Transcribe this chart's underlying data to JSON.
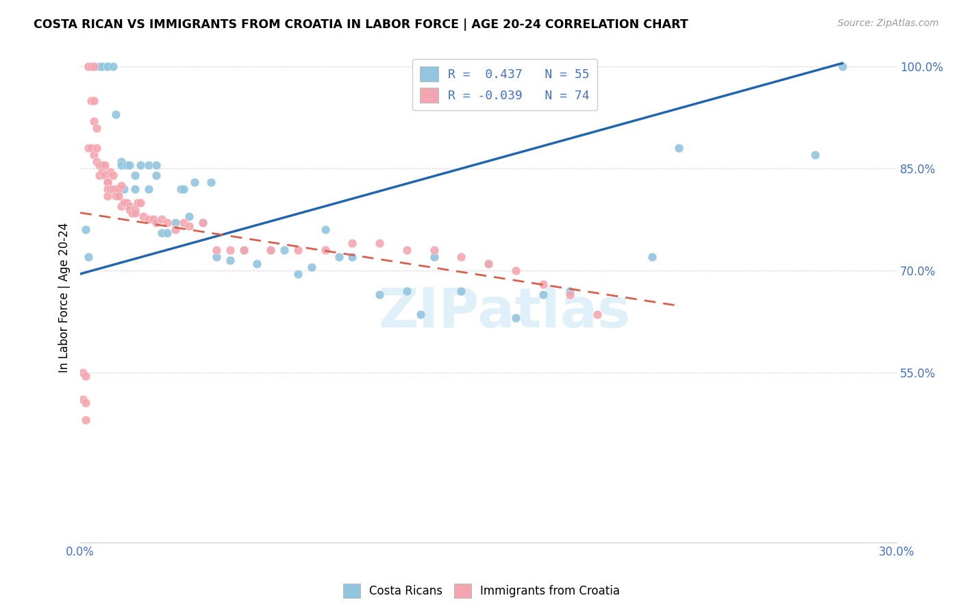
{
  "title": "COSTA RICAN VS IMMIGRANTS FROM CROATIA IN LABOR FORCE | AGE 20-24 CORRELATION CHART",
  "source": "Source: ZipAtlas.com",
  "ylabel": "In Labor Force | Age 20-24",
  "xlim": [
    0.0,
    0.3
  ],
  "ylim": [
    0.3,
    1.02
  ],
  "yticks": [
    1.0,
    0.85,
    0.7,
    0.55
  ],
  "ytick_labels": [
    "100.0%",
    "85.0%",
    "70.0%",
    "55.0%"
  ],
  "xticks": [
    0.0,
    0.05,
    0.1,
    0.15,
    0.2,
    0.25,
    0.3
  ],
  "xtick_labels": [
    "0.0%",
    "",
    "",
    "",
    "",
    "",
    "30.0%"
  ],
  "legend_blue_label": "R =  0.437   N = 55",
  "legend_pink_label": "R = -0.039   N = 74",
  "blue_color": "#92c5de",
  "pink_color": "#f4a6b0",
  "blue_line_color": "#2166ac",
  "pink_line_color": "#d6604d",
  "watermark": "ZIPatlas",
  "blue_line_x0": 0.0,
  "blue_line_y0": 0.695,
  "blue_line_x1": 0.28,
  "blue_line_y1": 1.005,
  "pink_line_x0": 0.0,
  "pink_line_y0": 0.785,
  "pink_line_x1": 0.22,
  "pink_line_y1": 0.648,
  "blue_scatter_x": [
    0.002,
    0.003,
    0.005,
    0.005,
    0.007,
    0.008,
    0.01,
    0.01,
    0.012,
    0.013,
    0.015,
    0.015,
    0.016,
    0.017,
    0.018,
    0.02,
    0.02,
    0.022,
    0.025,
    0.025,
    0.028,
    0.028,
    0.03,
    0.032,
    0.035,
    0.037,
    0.038,
    0.04,
    0.042,
    0.045,
    0.048,
    0.05,
    0.055,
    0.06,
    0.065,
    0.07,
    0.075,
    0.08,
    0.085,
    0.09,
    0.095,
    0.1,
    0.11,
    0.12,
    0.125,
    0.13,
    0.14,
    0.15,
    0.16,
    0.17,
    0.18,
    0.21,
    0.22,
    0.27,
    0.28
  ],
  "blue_scatter_y": [
    0.76,
    0.72,
    1.0,
    1.0,
    1.0,
    1.0,
    1.0,
    1.0,
    1.0,
    0.93,
    0.86,
    0.855,
    0.82,
    0.855,
    0.855,
    0.82,
    0.84,
    0.855,
    0.82,
    0.855,
    0.84,
    0.855,
    0.755,
    0.755,
    0.77,
    0.82,
    0.82,
    0.78,
    0.83,
    0.77,
    0.83,
    0.72,
    0.715,
    0.73,
    0.71,
    0.73,
    0.73,
    0.695,
    0.705,
    0.76,
    0.72,
    0.72,
    0.665,
    0.67,
    0.635,
    0.72,
    0.67,
    0.71,
    0.63,
    0.665,
    0.67,
    0.72,
    0.88,
    0.87,
    1.0
  ],
  "pink_scatter_x": [
    0.001,
    0.001,
    0.002,
    0.002,
    0.002,
    0.003,
    0.003,
    0.003,
    0.004,
    0.004,
    0.004,
    0.005,
    0.005,
    0.005,
    0.005,
    0.006,
    0.006,
    0.006,
    0.007,
    0.007,
    0.008,
    0.008,
    0.009,
    0.009,
    0.01,
    0.01,
    0.01,
    0.01,
    0.011,
    0.011,
    0.012,
    0.012,
    0.013,
    0.013,
    0.014,
    0.014,
    0.015,
    0.015,
    0.016,
    0.016,
    0.017,
    0.018,
    0.018,
    0.019,
    0.02,
    0.02,
    0.021,
    0.022,
    0.023,
    0.025,
    0.027,
    0.028,
    0.03,
    0.032,
    0.035,
    0.038,
    0.04,
    0.045,
    0.05,
    0.055,
    0.06,
    0.07,
    0.08,
    0.09,
    0.1,
    0.11,
    0.12,
    0.13,
    0.14,
    0.15,
    0.16,
    0.17,
    0.18,
    0.19
  ],
  "pink_scatter_y": [
    0.55,
    0.51,
    0.545,
    0.505,
    0.48,
    1.0,
    1.0,
    0.88,
    1.0,
    0.95,
    0.88,
    1.0,
    0.95,
    0.92,
    0.87,
    0.91,
    0.88,
    0.86,
    0.855,
    0.84,
    0.855,
    0.845,
    0.855,
    0.84,
    0.83,
    0.83,
    0.82,
    0.81,
    0.845,
    0.82,
    0.84,
    0.82,
    0.82,
    0.81,
    0.82,
    0.81,
    0.825,
    0.795,
    0.8,
    0.8,
    0.8,
    0.795,
    0.79,
    0.785,
    0.79,
    0.785,
    0.8,
    0.8,
    0.78,
    0.775,
    0.775,
    0.77,
    0.775,
    0.77,
    0.76,
    0.77,
    0.765,
    0.77,
    0.73,
    0.73,
    0.73,
    0.73,
    0.73,
    0.73,
    0.74,
    0.74,
    0.73,
    0.73,
    0.72,
    0.71,
    0.7,
    0.68,
    0.665,
    0.635
  ]
}
